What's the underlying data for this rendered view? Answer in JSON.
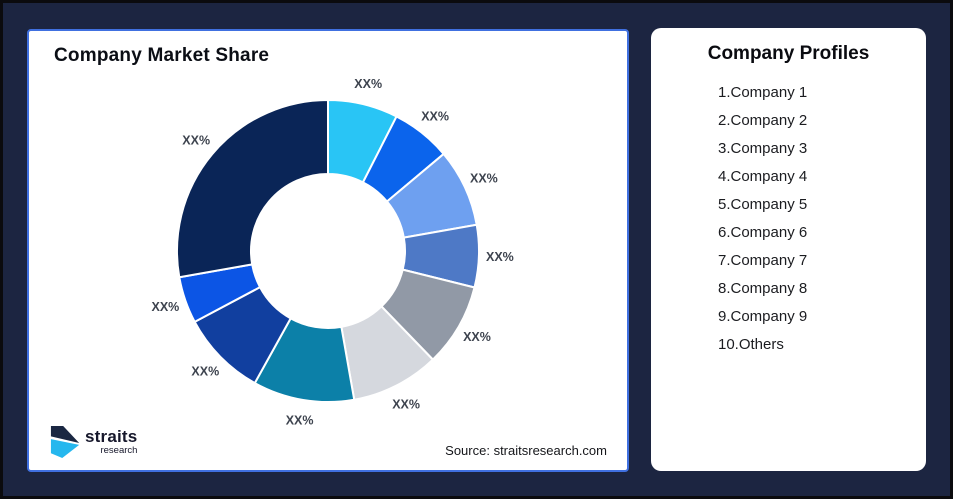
{
  "frame": {
    "background": "#1C2541",
    "border_color": "#0B0B0E"
  },
  "left_panel": {
    "title": "Company Market Share",
    "source": "Source: straitsresearch.com",
    "card_border_color": "#4070E0"
  },
  "logo": {
    "brand": "straits",
    "sub": "research",
    "navy": "#1A2742",
    "cyan": "#25B7EE"
  },
  "right_panel": {
    "title": "Company Profiles",
    "items": [
      "1.Company 1",
      "2.Company 2",
      "3.Company 3",
      "4.Company 4",
      "5.Company 5",
      "6.Company 6",
      "7.Company 7",
      "8.Company 8",
      "9.Company 9",
      "10.Others"
    ]
  },
  "chart_data": {
    "type": "pie",
    "subtype": "donut",
    "title": "Company Market Share",
    "inner_radius_ratio": 0.51,
    "start_angle_deg": 0,
    "direction": "clockwise",
    "value_note": "all slice labels are XX% placeholders; values are percent shares estimated from arc angles",
    "label_color": "#3D434E",
    "segments": [
      {
        "name": "Company 1",
        "label": "XX%",
        "value": 7.5,
        "start": 0,
        "end": 27,
        "color": "#29C5F5"
      },
      {
        "name": "Company 2",
        "label": "XX%",
        "value": 6.4,
        "start": 27,
        "end": 50,
        "color": "#0B64EC"
      },
      {
        "name": "Company 3",
        "label": "XX%",
        "value": 8.3,
        "start": 50,
        "end": 80,
        "color": "#6EA0F0"
      },
      {
        "name": "Company 4",
        "label": "XX%",
        "value": 6.7,
        "start": 80,
        "end": 104,
        "color": "#4E79C6"
      },
      {
        "name": "Company 5",
        "label": "XX%",
        "value": 8.9,
        "start": 104,
        "end": 136,
        "color": "#9199A6"
      },
      {
        "name": "Company 6",
        "label": "XX%",
        "value": 9.4,
        "start": 136,
        "end": 170,
        "color": "#D5D8DE"
      },
      {
        "name": "Company 7",
        "label": "XX%",
        "value": 10.8,
        "start": 170,
        "end": 209,
        "color": "#0C80A8"
      },
      {
        "name": "Company 8",
        "label": "XX%",
        "value": 9.2,
        "start": 209,
        "end": 242,
        "color": "#113F9F"
      },
      {
        "name": "Company 9",
        "label": "XX%",
        "value": 5.0,
        "start": 242,
        "end": 260,
        "color": "#0C55E5"
      },
      {
        "name": "Others",
        "label": "XX%",
        "value": 27.8,
        "start": 260,
        "end": 360,
        "color": "#0A2557"
      }
    ]
  }
}
